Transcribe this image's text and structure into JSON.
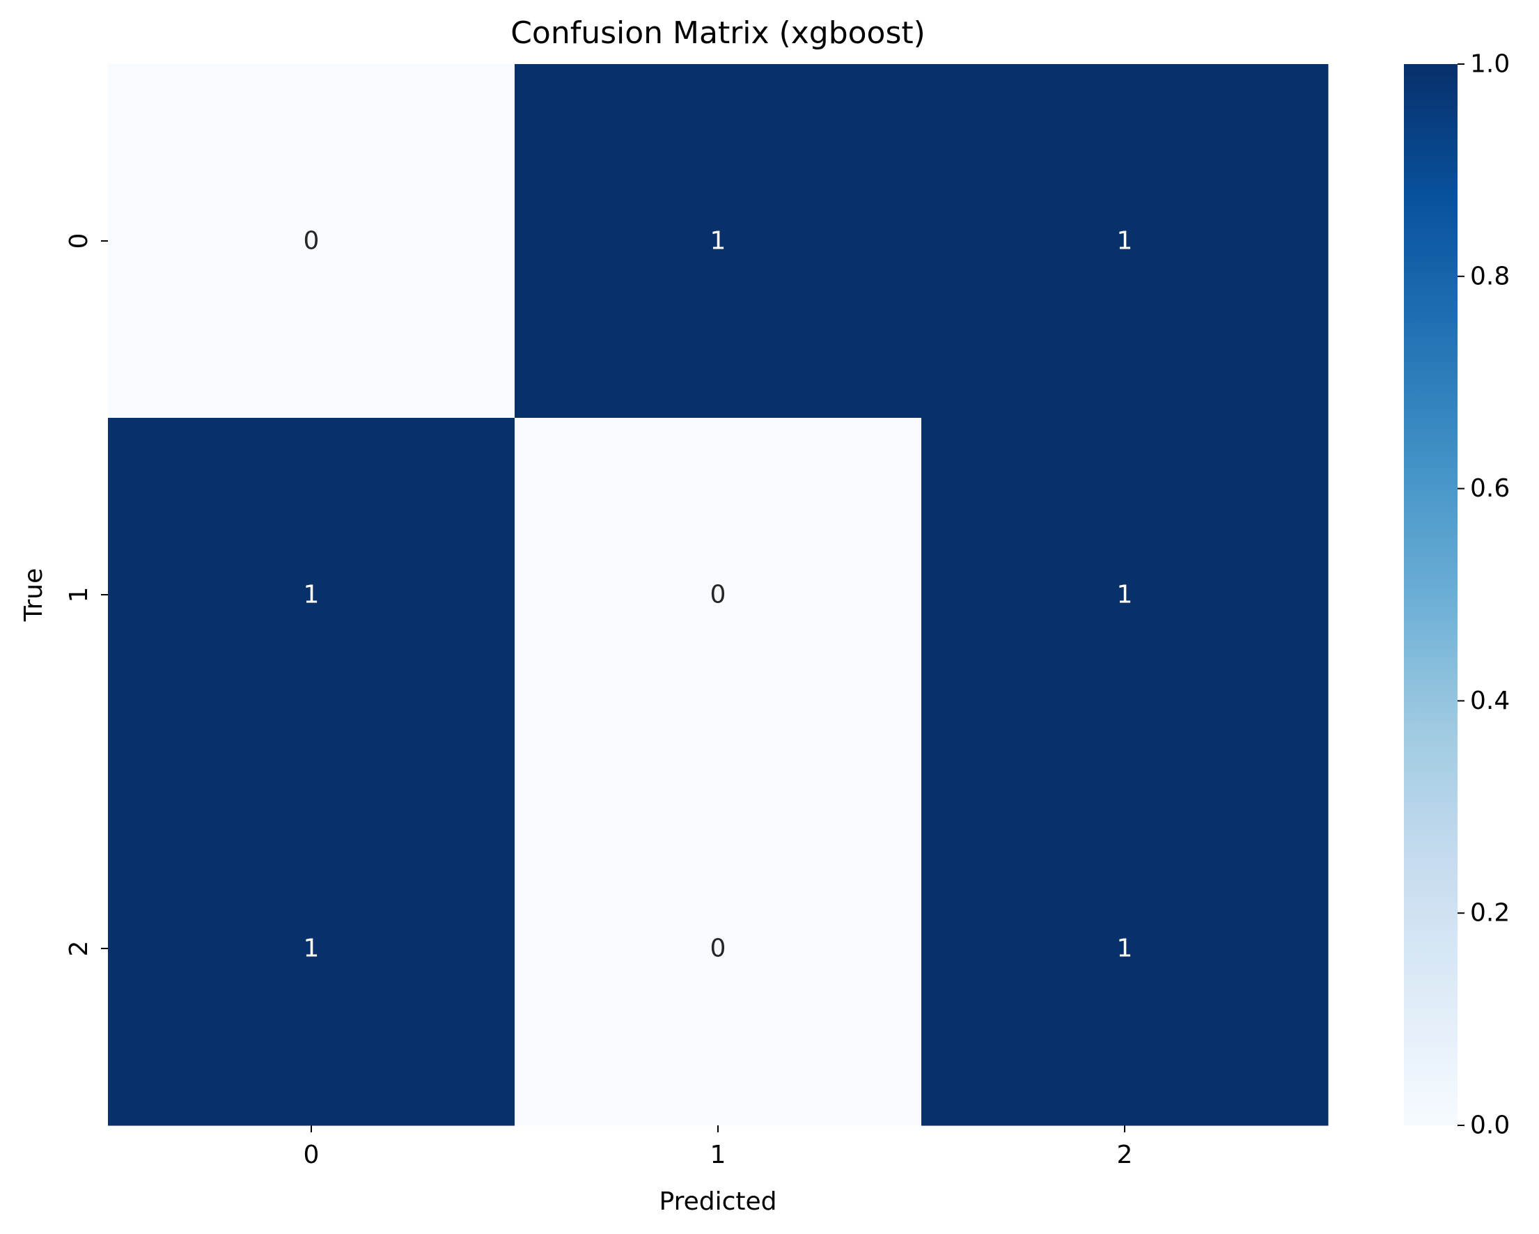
{
  "chart_data": {
    "type": "heatmap",
    "title": "Confusion Matrix (xgboost)",
    "xlabel": "Predicted",
    "ylabel": "True",
    "x_categories": [
      "0",
      "1",
      "2"
    ],
    "y_categories": [
      "0",
      "1",
      "2"
    ],
    "values": [
      [
        0,
        1,
        1
      ],
      [
        1,
        0,
        1
      ],
      [
        1,
        0,
        1
      ]
    ],
    "annotations": [
      [
        "0",
        "1",
        "1"
      ],
      [
        "1",
        "0",
        "1"
      ],
      [
        "1",
        "0",
        "1"
      ]
    ],
    "colormap": "Blues",
    "color_range": [
      0.0,
      1.0
    ],
    "colorbar_ticks": [
      "0.0",
      "0.2",
      "0.4",
      "0.6",
      "0.8",
      "1.0"
    ],
    "colors": {
      "low": "#f7fbff",
      "high": "#08306b",
      "text_on_dark": "#ffffff",
      "text_on_light": "#262626"
    }
  }
}
